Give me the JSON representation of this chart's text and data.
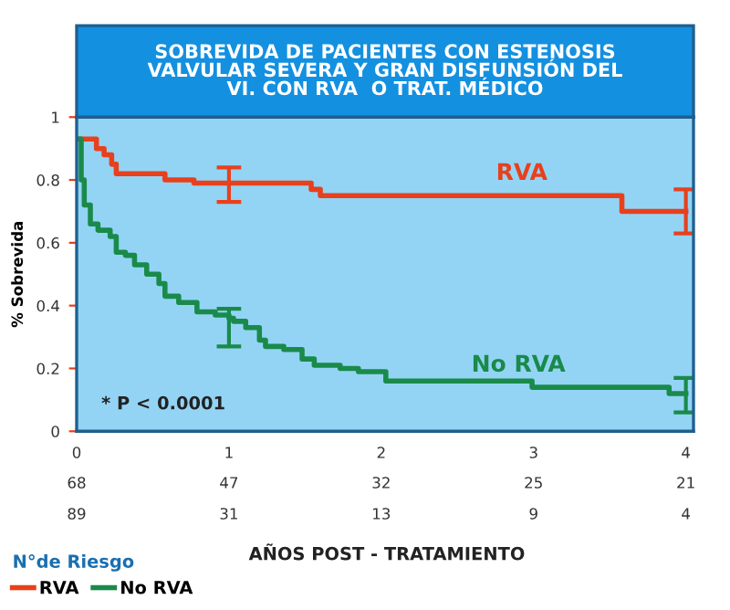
{
  "chart_data": {
    "type": "step",
    "title": "SOBREVIDA DE PACIENTES CON ESTENOSIS\nVALVULAR SEVERA Y GRAN DISFUNSIÓN DEL\nVI. CON RVA  O TRAT. MÉDICO",
    "xlabel": "AÑOS POST - TRATAMIENTO",
    "ylabel": "% Sobrevida",
    "legend_title": "N°de Riesgo",
    "legend": "bottom left",
    "grid": false,
    "xlim": [
      0,
      4.05
    ],
    "xticks": [
      0,
      1,
      2,
      3,
      4
    ],
    "ylim": [
      0,
      1
    ],
    "yticks": [
      0,
      0.2,
      0.4,
      0.6,
      0.8,
      1
    ],
    "series": [
      {
        "name": "RVA",
        "color": "#e8401c",
        "x": [
          0,
          0.13,
          0.18,
          0.23,
          0.26,
          0.58,
          0.77,
          1,
          1.54,
          1.6,
          3.58,
          4
        ],
        "values": [
          0.93,
          0.9,
          0.88,
          0.85,
          0.82,
          0.8,
          0.79,
          0.79,
          0.77,
          0.75,
          0.7,
          0.7
        ],
        "errors": [
          null,
          null,
          null,
          null,
          null,
          null,
          null,
          [
            0.73,
            0.84
          ],
          null,
          null,
          null,
          [
            0.63,
            0.77
          ]
        ]
      },
      {
        "name": "No RVA",
        "color": "#1a8a4a",
        "x": [
          0,
          0.03,
          0.05,
          0.09,
          0.14,
          0.22,
          0.26,
          0.32,
          0.38,
          0.46,
          0.54,
          0.58,
          0.67,
          0.79,
          0.91,
          1,
          1.03,
          1.11,
          1.2,
          1.24,
          1.36,
          1.48,
          1.56,
          1.73,
          1.85,
          2.03,
          2.99,
          3.89,
          4
        ],
        "values": [
          0.93,
          0.8,
          0.72,
          0.66,
          0.64,
          0.62,
          0.57,
          0.56,
          0.53,
          0.5,
          0.47,
          0.43,
          0.41,
          0.38,
          0.37,
          0.36,
          0.35,
          0.33,
          0.29,
          0.27,
          0.26,
          0.23,
          0.21,
          0.2,
          0.19,
          0.16,
          0.14,
          0.12,
          0.12
        ],
        "errors": [
          null,
          null,
          null,
          null,
          null,
          null,
          null,
          null,
          null,
          null,
          null,
          null,
          null,
          null,
          null,
          [
            0.27,
            0.39
          ],
          null,
          null,
          null,
          null,
          null,
          null,
          null,
          null,
          null,
          null,
          null,
          null,
          [
            0.06,
            0.17
          ]
        ]
      }
    ],
    "annotations": [
      "RVA",
      "No RVA",
      "* P < 0.0001",
      "68",
      "47",
      "32",
      "25",
      "21",
      "89",
      "31",
      "13",
      "9",
      "4"
    ]
  }
}
